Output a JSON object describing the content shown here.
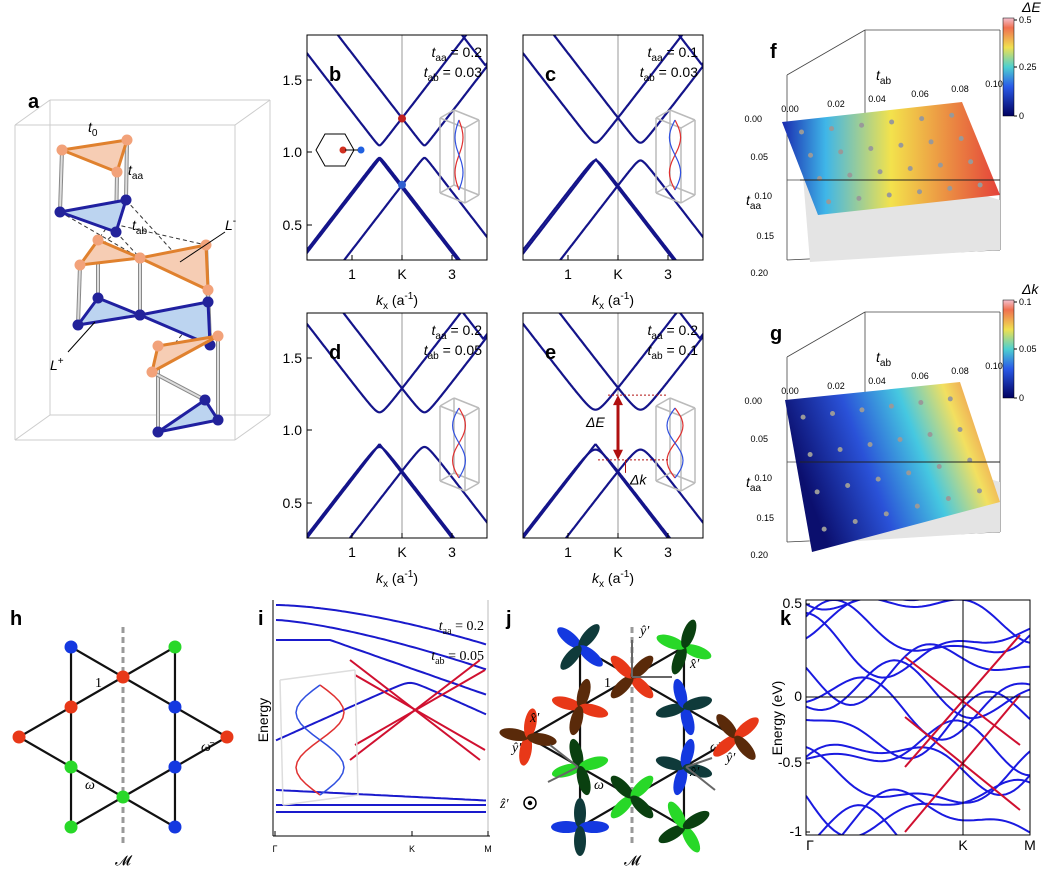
{
  "a": {
    "label": "a",
    "t0": {
      "sym": "t",
      "sub": "0"
    },
    "taa": {
      "sym": "t",
      "sub": "aa"
    },
    "tab": {
      "sym": "t",
      "sub": "ab"
    },
    "lm": {
      "sym": "L",
      "sup": "-"
    },
    "lp": {
      "sym": "L",
      "sup": "+"
    }
  },
  "bands": [
    {
      "label": "b",
      "p1": {
        "sym": "t",
        "sub": "aa",
        "rest": " = 0.2"
      },
      "p2": {
        "sym": "t",
        "sub": "ab",
        "rest": " = 0.03"
      },
      "yticks": [
        "0.5",
        "1.0",
        "1.5"
      ],
      "xticks": [
        "1",
        "K",
        "3"
      ],
      "xlabel": {
        "sym": "k",
        "sub": "x",
        "rest": " (a",
        "sup": "-1",
        "rest2": ")"
      }
    },
    {
      "label": "c",
      "p1": {
        "sym": "t",
        "sub": "aa",
        "rest": " = 0.1"
      },
      "p2": {
        "sym": "t",
        "sub": "ab",
        "rest": " = 0.03"
      },
      "xticks": [
        "1",
        "K",
        "3"
      ],
      "xlabel": {
        "sym": "k",
        "sub": "x",
        "rest": " (a",
        "sup": "-1",
        "rest2": ")"
      }
    },
    {
      "label": "d",
      "p1": {
        "sym": "t",
        "sub": "aa",
        "rest": " = 0.2"
      },
      "p2": {
        "sym": "t",
        "sub": "ab",
        "rest": " = 0.05"
      },
      "yticks": [
        "0.5",
        "1.0",
        "1.5"
      ],
      "xticks": [
        "1",
        "K",
        "3"
      ],
      "xlabel": {
        "sym": "k",
        "sub": "x",
        "rest": " (a",
        "sup": "-1",
        "rest2": ")"
      }
    },
    {
      "label": "e",
      "p1": {
        "sym": "t",
        "sub": "aa",
        "rest": " = 0.2"
      },
      "p2": {
        "sym": "t",
        "sub": "ab",
        "rest": " = 0.1"
      },
      "xticks": [
        "1",
        "K",
        "3"
      ],
      "xlabel": {
        "sym": "k",
        "sub": "x",
        "rest": " (a",
        "sup": "-1",
        "rest2": ")"
      },
      "dE": "ΔE",
      "dk": "Δk"
    }
  ],
  "surfaces": [
    {
      "label": "f",
      "cbar_title": "ΔE",
      "cbar_ticks": [
        "0.5",
        "0.25",
        "0"
      ],
      "xlabel": {
        "sym": "t",
        "sub": "ab"
      },
      "xticks": [
        "0.00",
        "0.02",
        "0.04",
        "0.06",
        "0.08",
        "0.10"
      ],
      "ylabel": {
        "sym": "t",
        "sub": "aa"
      },
      "yticks": [
        "0.00",
        "0.05",
        "0.10",
        "0.15",
        "0.20"
      ]
    },
    {
      "label": "g",
      "cbar_title": "Δk",
      "cbar_ticks": [
        "0.1",
        "0.05",
        "0"
      ],
      "xlabel": {
        "sym": "t",
        "sub": "ab"
      },
      "xticks": [
        "0.00",
        "0.02",
        "0.04",
        "0.06",
        "0.08",
        "0.10"
      ],
      "ylabel": {
        "sym": "t",
        "sub": "aa"
      },
      "yticks": [
        "0.00",
        "0.05",
        "0.10",
        "0.15",
        "0.20"
      ]
    }
  ],
  "h": {
    "label": "h",
    "one": "1",
    "wbar": "ω̄",
    "w": "ω",
    "mirror": "𝓜"
  },
  "i": {
    "label": "i",
    "p1": {
      "sym": "t",
      "sub": "aa",
      "rest": " = 0.2"
    },
    "p2": {
      "sym": "t",
      "sub": "ab",
      "rest": " = 0.05"
    },
    "ylabel": "Energy",
    "xticks": [
      "Γ",
      "K",
      "M"
    ]
  },
  "j": {
    "label": "j",
    "one": "1",
    "wbar": "ω̄",
    "w": "ω",
    "mirror": "𝓜",
    "axes": [
      "ŷ′",
      "x̂′",
      "x̂′",
      "ŷ′",
      "x̂′",
      "ŷ′"
    ],
    "z": "ẑ′"
  },
  "k": {
    "label": "k",
    "yticks": [
      "0.5",
      "0",
      "-0.5",
      "-1"
    ],
    "ylabel": "Energy (eV)",
    "xticks": [
      "Γ",
      "K",
      "M"
    ]
  }
}
